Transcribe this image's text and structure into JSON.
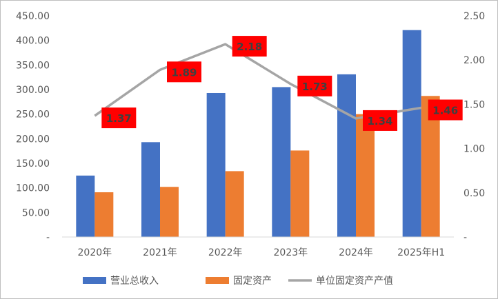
{
  "chart_data": {
    "type": "bar",
    "categories": [
      "2020年",
      "2021年",
      "2022年",
      "2023年",
      "2024年",
      "2025年H1"
    ],
    "series": [
      {
        "name": "营业总收入",
        "type": "bar",
        "axis": "left",
        "color": "#4472c4",
        "values": [
          125,
          193,
          293,
          305,
          331,
          421
        ]
      },
      {
        "name": "固定资产",
        "type": "bar",
        "axis": "left",
        "color": "#ed7d31",
        "values": [
          91,
          102,
          134,
          176,
          250,
          287
        ]
      },
      {
        "name": "单位固定资产产值",
        "type": "line",
        "axis": "right",
        "color": "#a5a5a5",
        "values": [
          1.37,
          1.89,
          2.18,
          1.73,
          1.34,
          1.46
        ],
        "labels": [
          "1.37",
          "1.89",
          "2.18",
          "1.73",
          "1.34",
          "1.46"
        ],
        "label_color": "#ff0000"
      }
    ],
    "y_left": {
      "ylim": [
        0,
        450
      ],
      "ticks": [
        "-",
        "50.00",
        "100.00",
        "150.00",
        "200.00",
        "250.00",
        "300.00",
        "350.00",
        "400.00",
        "450.00"
      ]
    },
    "y_right": {
      "ylim": [
        0,
        2.5
      ],
      "ticks": [
        "-",
        "0.50",
        "1.00",
        "1.50",
        "2.00",
        "2.50"
      ]
    },
    "grid": false,
    "legend": "bottom"
  }
}
